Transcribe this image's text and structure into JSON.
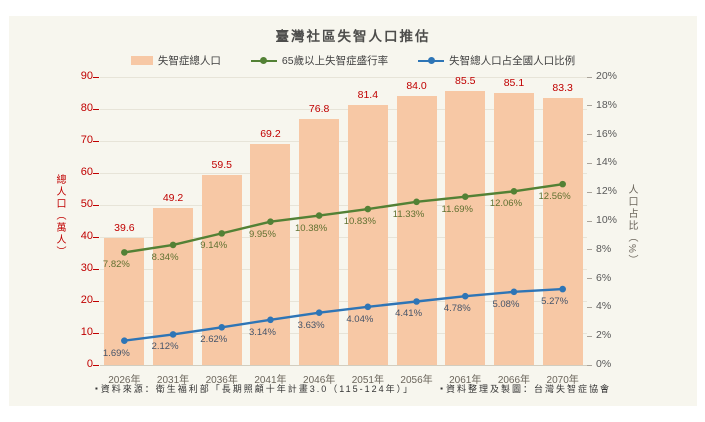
{
  "title": "臺灣社區失智人口推估",
  "legend": [
    {
      "label": "失智症總人口",
      "type": "bar",
      "color": "#f7c8a5"
    },
    {
      "label": "65歲以上失智症盛行率",
      "type": "line",
      "color": "#538135"
    },
    {
      "label": "失智總人口占全國人口比例",
      "type": "line",
      "color": "#2e75b6"
    }
  ],
  "chart_data": {
    "type": "bar",
    "subtype": "bar+line combo, dual axis",
    "title": "臺灣社區失智人口推估",
    "categories": [
      "2026年",
      "2031年",
      "2036年",
      "2041年",
      "2046年",
      "2051年",
      "2056年",
      "2061年",
      "2066年",
      "2070年"
    ],
    "series": [
      {
        "name": "失智症總人口",
        "type": "bar",
        "axis": "left",
        "unit": "萬人",
        "color": "#f7c8a5",
        "label_color": "#c00000",
        "values": [
          39.6,
          49.2,
          59.5,
          69.2,
          76.8,
          81.4,
          84.0,
          85.5,
          85.1,
          83.3
        ],
        "labels": [
          "39.6",
          "49.2",
          "59.5",
          "69.2",
          "76.8",
          "81.4",
          "84.0",
          "85.5",
          "85.1",
          "83.3"
        ]
      },
      {
        "name": "65歲以上失智症盛行率",
        "type": "line",
        "axis": "right",
        "unit": "%",
        "color": "#538135",
        "label_color": "#5f7030",
        "values": [
          7.82,
          8.34,
          9.14,
          9.95,
          10.38,
          10.83,
          11.33,
          11.69,
          12.06,
          12.56
        ],
        "labels": [
          "7.82%",
          "8.34%",
          "9.14%",
          "9.95%",
          "10.38%",
          "10.83%",
          "11.33%",
          "11.69%",
          "12.06%",
          "12.56%"
        ]
      },
      {
        "name": "失智總人口占全國人口比例",
        "type": "line",
        "axis": "right",
        "unit": "%",
        "color": "#2e75b6",
        "label_color": "#44546a",
        "values": [
          1.69,
          2.12,
          2.62,
          3.14,
          3.63,
          4.04,
          4.41,
          4.78,
          5.08,
          5.27
        ],
        "labels": [
          "1.69%",
          "2.12%",
          "2.62%",
          "3.14%",
          "3.63%",
          "4.04%",
          "4.41%",
          "4.78%",
          "5.08%",
          "5.27%"
        ]
      }
    ],
    "left_axis": {
      "title": "總人口（萬人）",
      "min": 0,
      "max": 90,
      "step": 10,
      "color": "#c00000"
    },
    "right_axis": {
      "title": "人口占比（%）",
      "min": 0,
      "max": 20,
      "step": 2,
      "suffix": "%",
      "color": "#595959"
    },
    "grid": "horizontal gridlines at left-axis steps",
    "legend_position": "top"
  },
  "footer": {
    "bullet": "▪",
    "source_note": "資料來源：衛生福利部「長期照顧十年計畫3.0（115-124年）」",
    "credit_note": "資料整理及製圖：台灣失智症協會"
  }
}
